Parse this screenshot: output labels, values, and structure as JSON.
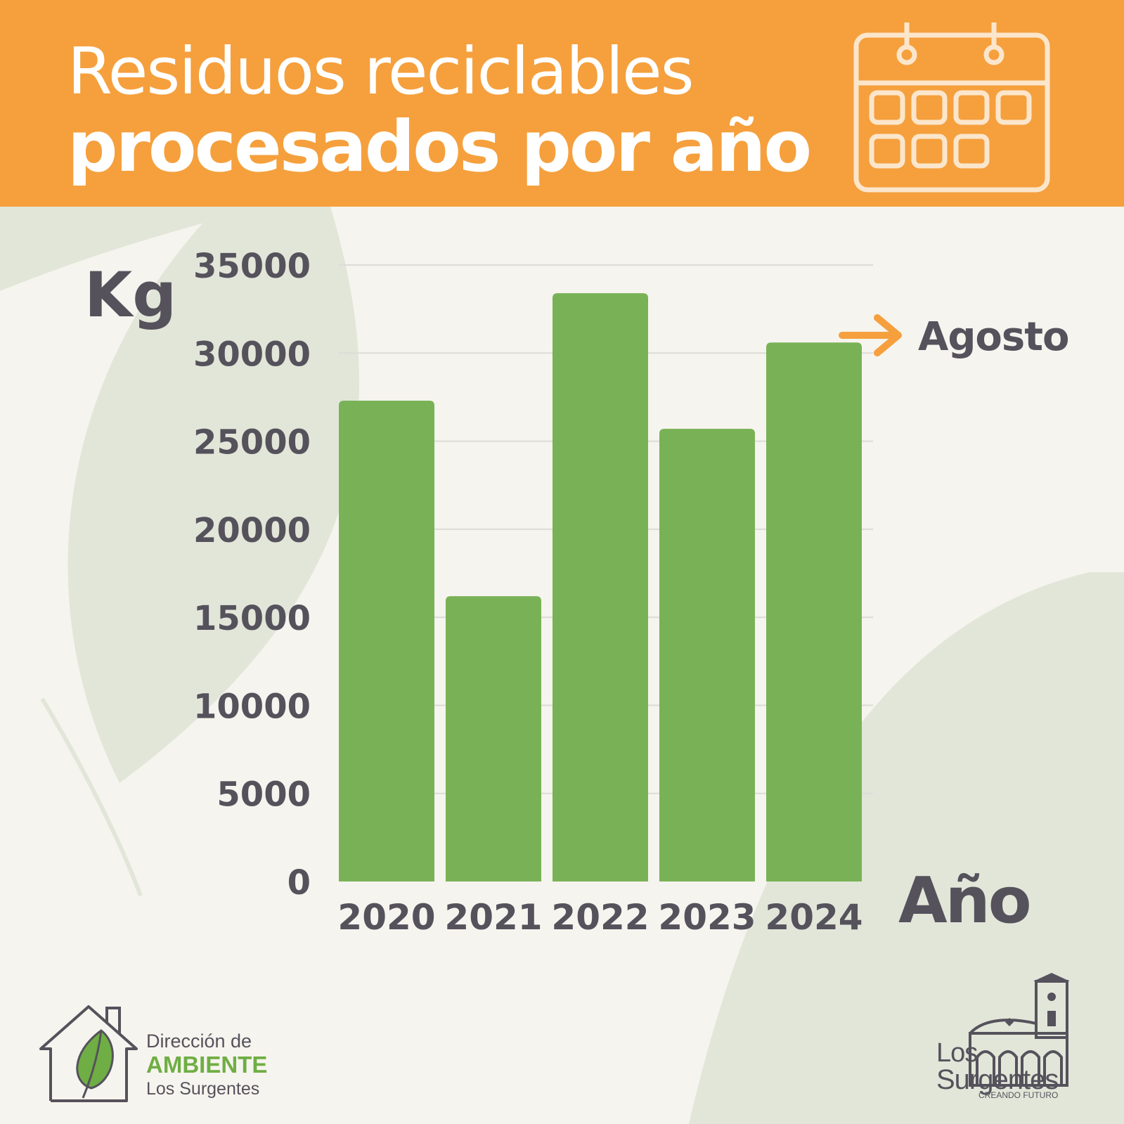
{
  "header": {
    "title_line1": "Residuos reciclables",
    "title_line2": "procesados por año",
    "icon": "calendar-icon",
    "background_color": "#f5a03d"
  },
  "chart_data": {
    "type": "bar",
    "title": "Residuos reciclables procesados por año",
    "xlabel": "Año",
    "ylabel": "Kg",
    "categories": [
      "2020",
      "2021",
      "2022",
      "2023",
      "2024"
    ],
    "values": [
      27300,
      16200,
      33400,
      25700,
      30600
    ],
    "ylim": [
      0,
      35000
    ],
    "yticks": [
      "0",
      "5000",
      "10000",
      "15000",
      "20000",
      "25000",
      "30000",
      "35000"
    ],
    "grid": true,
    "bar_color": "#79b256",
    "annotation": {
      "text": "Agosto",
      "category": "2024",
      "arrow_color": "#f5a03d"
    }
  },
  "footer": {
    "left_logo": {
      "icon": "house-leaf-icon",
      "line1": "Dirección de",
      "line2": "AMBIENTE",
      "line3": "Los Surgentes"
    },
    "right_logo": {
      "icon": "church-icon",
      "line1": "Los",
      "line2": "Surgentes",
      "tagline": "CREANDO FUTURO"
    }
  },
  "colors": {
    "background": "#f6f4ee",
    "text_dark": "#55525c",
    "accent_green": "#6fae44",
    "leaf_background": "#e2e6d9"
  }
}
